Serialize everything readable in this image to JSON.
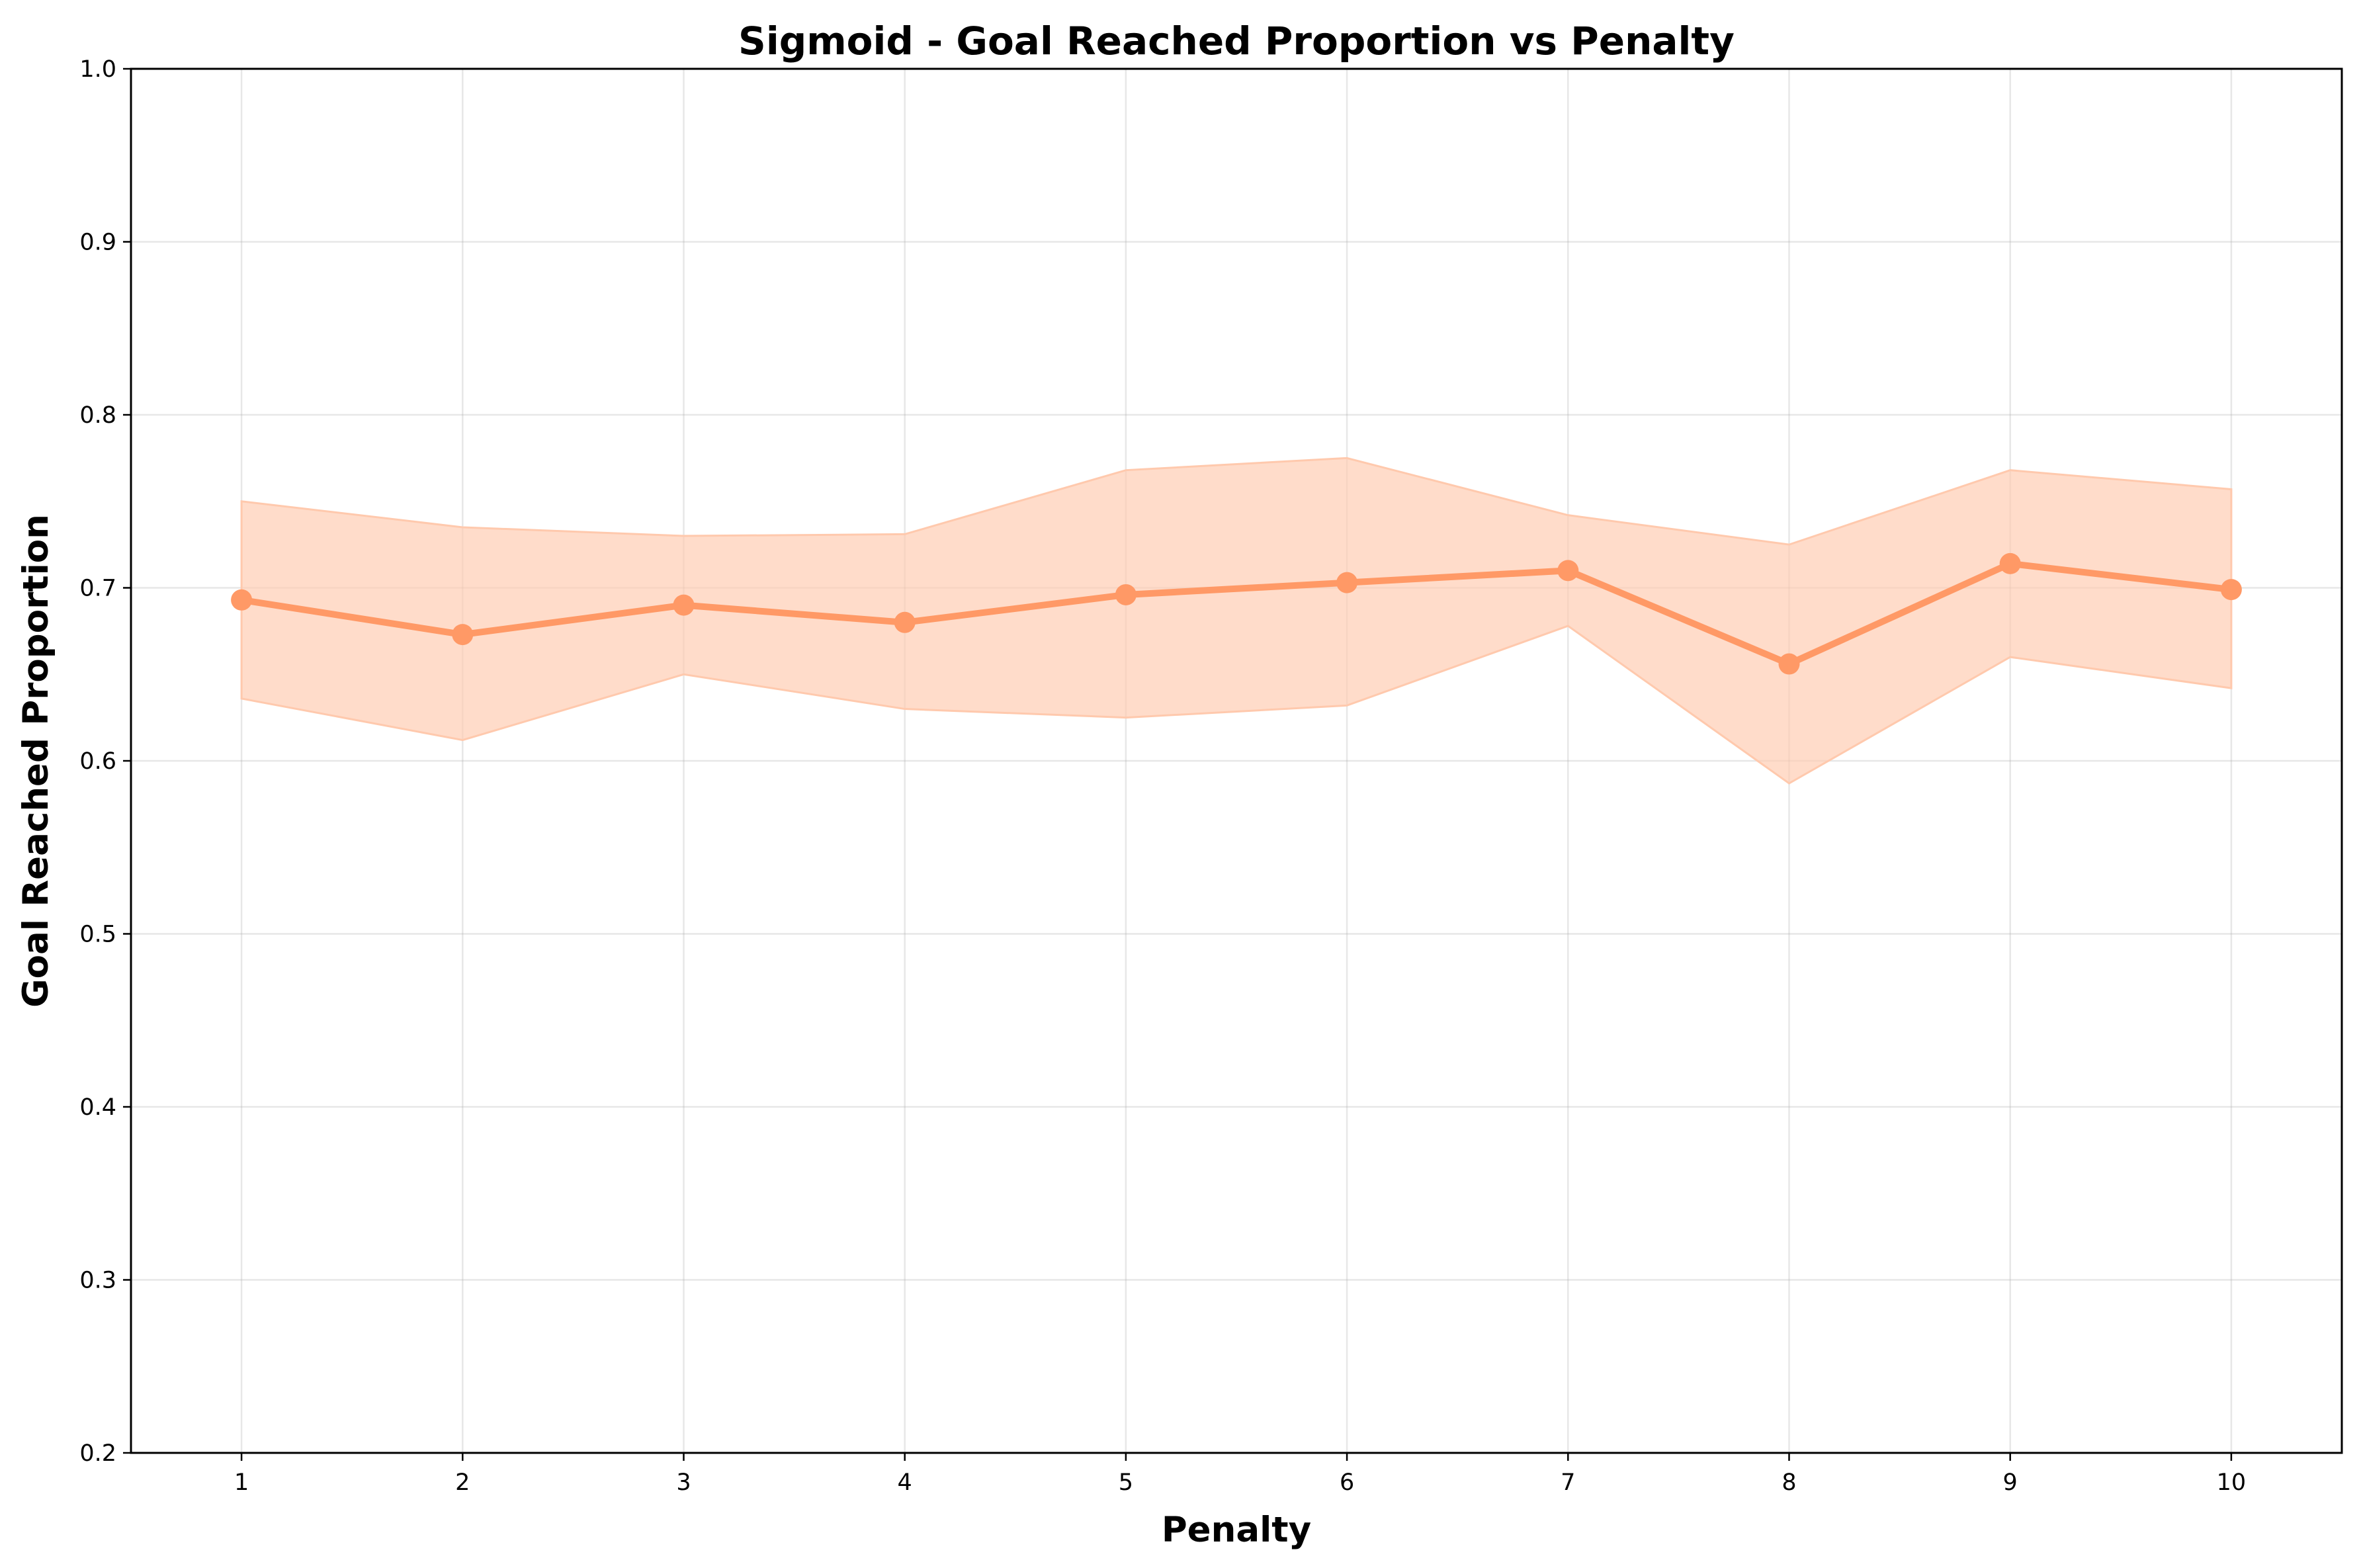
{
  "chart_data": {
    "type": "line",
    "title": "Sigmoid - Goal Reached Proportion vs Penalty",
    "xlabel": "Penalty",
    "ylabel": "Goal Reached Proportion",
    "x": [
      1,
      2,
      3,
      4,
      5,
      6,
      7,
      8,
      9,
      10
    ],
    "xticks": [
      "1",
      "2",
      "3",
      "4",
      "5",
      "6",
      "7",
      "8",
      "9",
      "10"
    ],
    "xlim": [
      0.5,
      10.5
    ],
    "ylim": [
      0.2,
      1.0
    ],
    "yticks": [
      "0.2",
      "0.3",
      "0.4",
      "0.5",
      "0.6",
      "0.7",
      "0.8",
      "0.9",
      "1.0"
    ],
    "grid": true,
    "legend": "none",
    "series": [
      {
        "values": [
          0.693,
          0.673,
          0.69,
          0.68,
          0.696,
          0.703,
          0.71,
          0.656,
          0.714,
          0.699
        ],
        "lower": [
          0.636,
          0.612,
          0.65,
          0.63,
          0.625,
          0.632,
          0.678,
          0.587,
          0.66,
          0.642
        ],
        "upper": [
          0.75,
          0.735,
          0.73,
          0.731,
          0.768,
          0.775,
          0.742,
          0.725,
          0.768,
          0.757
        ],
        "color": "#ff9966",
        "band_color": "#ffc9ad"
      }
    ]
  }
}
